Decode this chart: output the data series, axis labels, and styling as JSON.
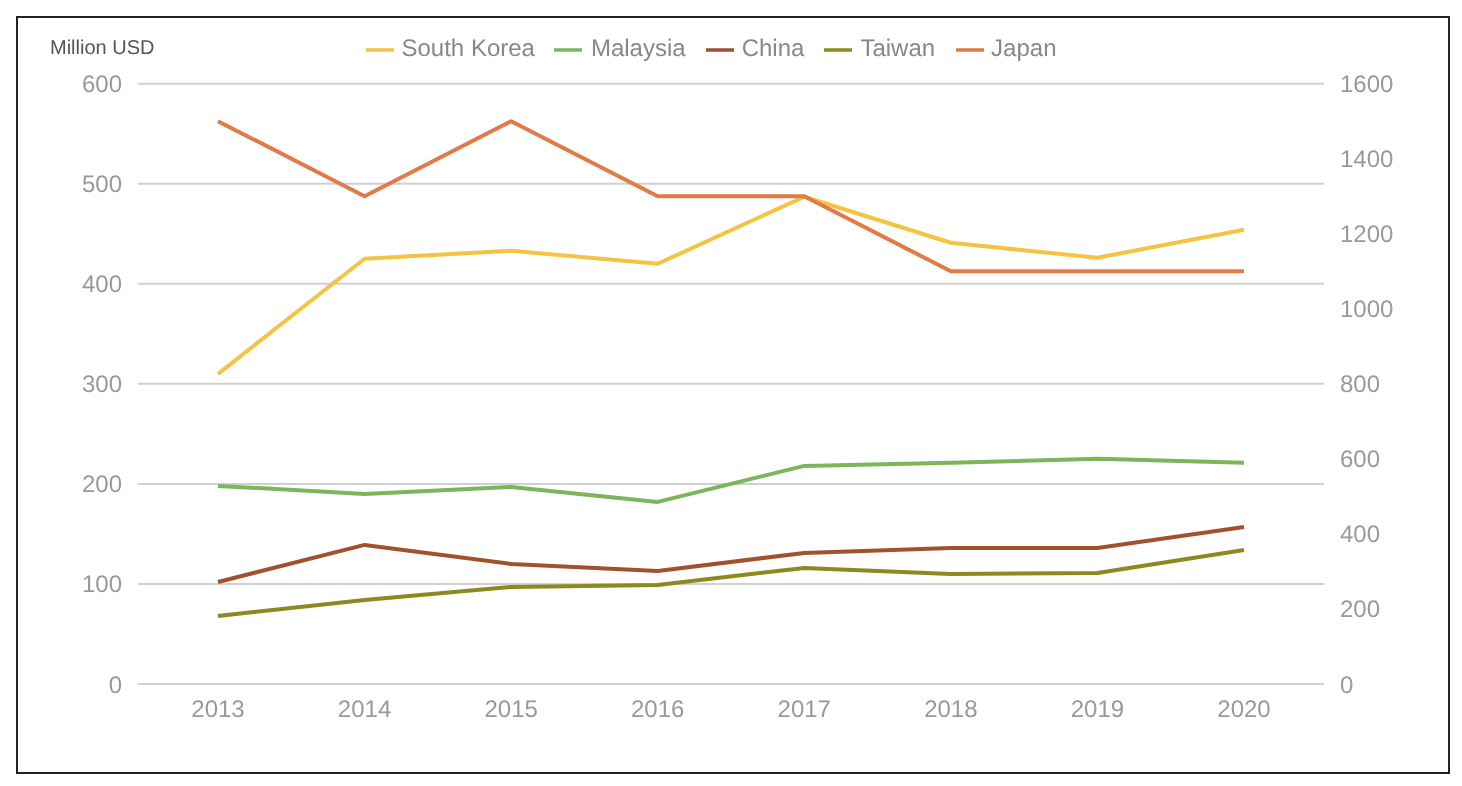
{
  "chart_data": {
    "type": "line",
    "ylabel": "Million USD",
    "categories": [
      "2013",
      "2014",
      "2015",
      "2016",
      "2017",
      "2018",
      "2019",
      "2020"
    ],
    "series": [
      {
        "name": "South Korea",
        "color": "#f5c342",
        "values": [
          310,
          425,
          433,
          420,
          487,
          441,
          426,
          454
        ]
      },
      {
        "name": "Malaysia",
        "color": "#7cb55a",
        "values": [
          198,
          190,
          197,
          182,
          218,
          221,
          225,
          221
        ]
      },
      {
        "name": "China",
        "color": "#a0522d",
        "values": [
          102,
          139,
          120,
          113,
          131,
          136,
          136,
          157
        ]
      },
      {
        "name": "Taiwan",
        "color": "#8a8a1e",
        "values": [
          68,
          84,
          97,
          99,
          116,
          110,
          111,
          134
        ]
      },
      {
        "name": "Japan",
        "color": "#e07b45",
        "axis": "y2",
        "values": [
          1500,
          1300,
          1500,
          1300,
          1300,
          1100,
          1100,
          1100
        ]
      }
    ],
    "ylim": [
      0,
      600
    ],
    "yticks": [
      0,
      100,
      200,
      300,
      400,
      500,
      600
    ],
    "y2lim": [
      0,
      1600
    ],
    "y2ticks": [
      0,
      200,
      400,
      600,
      800,
      1000,
      1200,
      1400,
      1600
    ],
    "grid": "y",
    "legend": "top",
    "marker": "none",
    "line_style": "solid"
  }
}
